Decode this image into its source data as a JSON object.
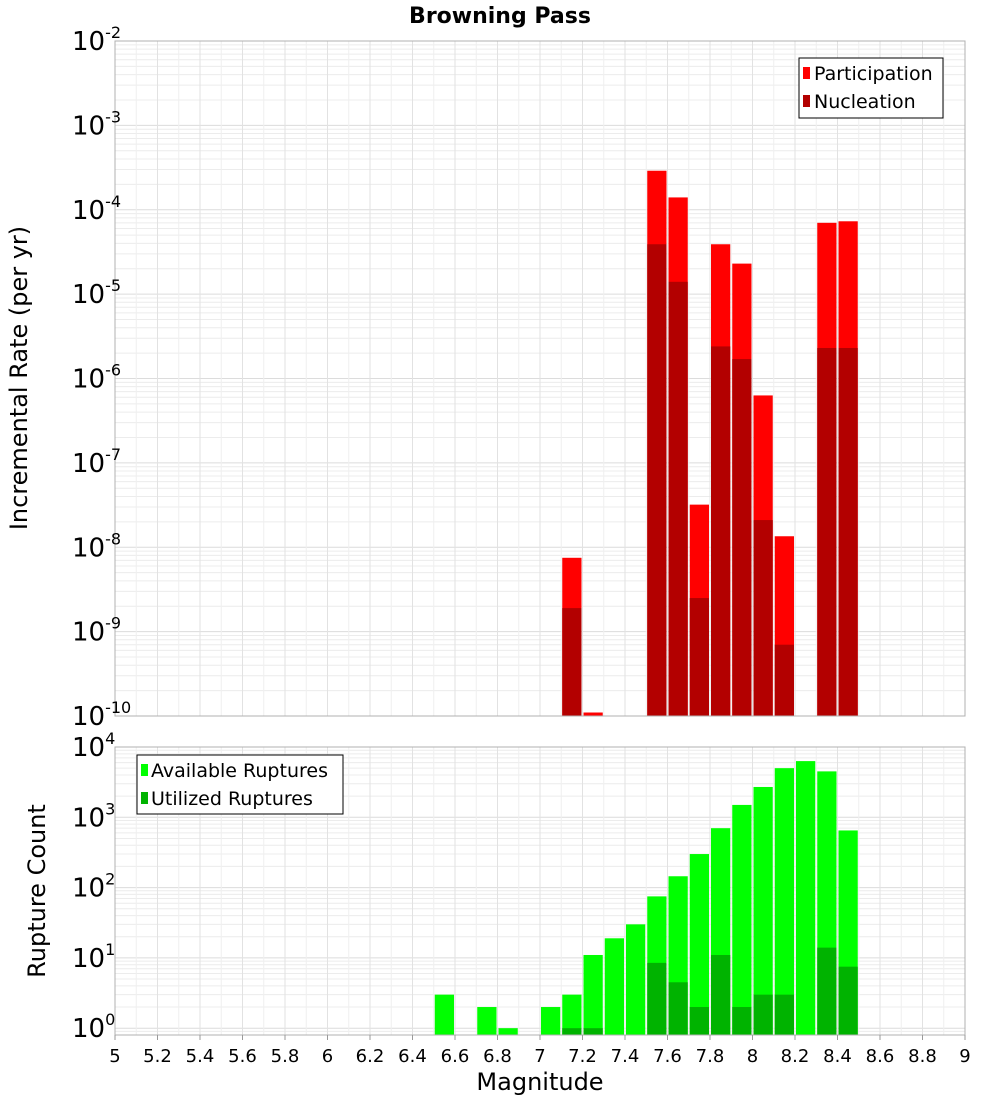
{
  "chart_data": [
    {
      "type": "bar",
      "title": "Browning Pass",
      "xlabel": "",
      "ylabel": "Incremental Rate (per yr)",
      "yscale": "log",
      "ylim": [
        1e-10,
        0.01
      ],
      "xlim": [
        5,
        9
      ],
      "bar_width": 0.1,
      "ytick_exponents": [
        "-10",
        "-9",
        "-8",
        "-7",
        "-6",
        "-5",
        "-4",
        "-3",
        "-2"
      ],
      "ytick_base": "10",
      "legend_position": "top-right",
      "series": [
        {
          "name": "Participation",
          "color": "#ff0000",
          "x": [
            7.15,
            7.25,
            7.55,
            7.65,
            7.75,
            7.85,
            7.95,
            8.05,
            8.15,
            8.35,
            8.45
          ],
          "values": [
            7.5e-09,
            1.1e-10,
            0.00029,
            0.00014,
            3.2e-08,
            3.9e-05,
            2.3e-05,
            6.3e-07,
            1.35e-08,
            7e-05,
            7.3e-05
          ]
        },
        {
          "name": "Nucleation",
          "color": "#b30000",
          "x": [
            7.15,
            7.55,
            7.65,
            7.75,
            7.85,
            7.95,
            8.05,
            8.15,
            8.35,
            8.45
          ],
          "values": [
            1.9e-09,
            3.9e-05,
            1.4e-05,
            2.5e-09,
            2.4e-06,
            1.7e-06,
            2.1e-08,
            7e-10,
            2.3e-06,
            2.3e-06
          ]
        }
      ]
    },
    {
      "type": "bar",
      "title": "",
      "xlabel": "Magnitude",
      "ylabel": "Rupture Count",
      "yscale": "log",
      "ylim": [
        0.8,
        10000
      ],
      "xlim": [
        5,
        9
      ],
      "bar_width": 0.1,
      "ytick_exponents": [
        "0",
        "1",
        "2",
        "3",
        "4"
      ],
      "ytick_base": "10",
      "xticks": [
        "5",
        "5.2",
        "5.4",
        "5.6",
        "5.8",
        "6",
        "6.2",
        "6.4",
        "6.6",
        "6.8",
        "7",
        "7.2",
        "7.4",
        "7.6",
        "7.8",
        "8",
        "8.2",
        "8.4",
        "8.6",
        "8.8",
        "9"
      ],
      "legend_position": "top-left",
      "series": [
        {
          "name": "Available Ruptures",
          "color": "#00ff00",
          "x": [
            6.55,
            6.75,
            6.85,
            7.05,
            7.15,
            7.25,
            7.35,
            7.45,
            7.55,
            7.65,
            7.75,
            7.85,
            7.95,
            8.05,
            8.15,
            8.25,
            8.35,
            8.45
          ],
          "values": [
            3,
            2,
            1,
            2,
            3,
            11,
            19,
            30,
            75,
            145,
            300,
            700,
            1500,
            2700,
            5000,
            6300,
            4500,
            650
          ]
        },
        {
          "name": "Utilized Ruptures",
          "color": "#00b300",
          "x": [
            7.15,
            7.25,
            7.55,
            7.65,
            7.75,
            7.85,
            7.95,
            8.05,
            8.15,
            8.35,
            8.45
          ],
          "values": [
            1,
            1,
            8.5,
            4.5,
            2,
            11,
            2,
            3,
            3,
            14,
            7.5
          ]
        }
      ]
    }
  ]
}
